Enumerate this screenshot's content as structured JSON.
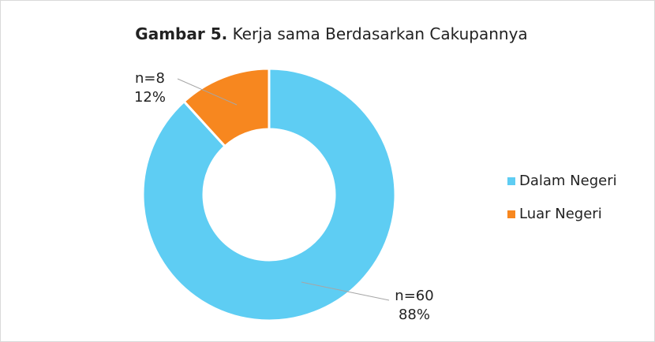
{
  "chart_data": {
    "type": "doughnut",
    "title": {
      "label": "Gambar 5.",
      "text": "Kerja sama Berdasarkan Cakupannya"
    },
    "categories": [
      "Dalam Negeri",
      "Luar Negeri"
    ],
    "values": [
      60,
      8
    ],
    "value_labels": [
      "n=60",
      "n=8"
    ],
    "percentages": [
      88,
      12
    ],
    "percentage_labels": [
      "88%",
      "12%"
    ],
    "colors": [
      "#5ecdf3",
      "#f7871f"
    ],
    "legend": "right"
  }
}
